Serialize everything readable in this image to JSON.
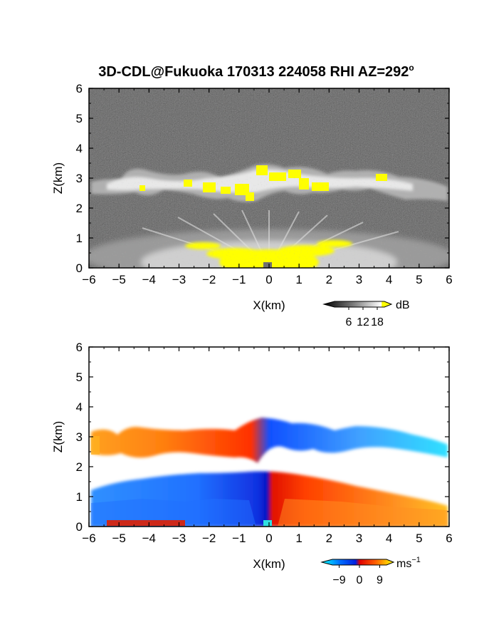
{
  "figure": {
    "title": "3D-CDL@Fukuoka 170313 224058 RHI AZ=292",
    "title_superscript": "o"
  },
  "chart_data": [
    {
      "type": "heatmap",
      "name": "reflectivity",
      "xlabel": "X(km)",
      "ylabel": "Z(km)",
      "xlim": [
        -6,
        6
      ],
      "ylim": [
        0,
        6
      ],
      "xticks": [
        -6,
        -5,
        -4,
        -3,
        -2,
        -1,
        0,
        1,
        2,
        3,
        4,
        5,
        6
      ],
      "yticks": [
        0,
        1,
        2,
        3,
        4,
        5,
        6
      ],
      "colorbar": {
        "unit": "dB",
        "ticks": [
          6,
          12,
          18
        ],
        "range": [
          0,
          21
        ],
        "colors": [
          "#000000",
          "#808080",
          "#ffffff",
          "#ffff00"
        ]
      },
      "features": {
        "cloud_layer_base_km": 2.3,
        "cloud_layer_top_km": 3.5,
        "boundary_layer_top_km": 1.1,
        "background": "noise (near-black speckle)"
      }
    },
    {
      "type": "heatmap",
      "name": "doppler_velocity",
      "xlabel": "X(km)",
      "ylabel": "Z(km)",
      "xlim": [
        -6,
        6
      ],
      "ylim": [
        0,
        6
      ],
      "xticks": [
        -6,
        -5,
        -4,
        -3,
        -2,
        -1,
        0,
        1,
        2,
        3,
        4,
        5,
        6
      ],
      "yticks": [
        0,
        1,
        2,
        3,
        4,
        5,
        6
      ],
      "colorbar": {
        "unit": "ms",
        "unit_exponent": "−1",
        "ticks": [
          "−9",
          "0",
          "9"
        ],
        "range": [
          -12,
          12
        ],
        "colors": [
          "#00ffff",
          "#0040ff",
          "#ff2000",
          "#ffff00"
        ]
      },
      "features": {
        "boundary_layer_left": "towards radar (blue)",
        "boundary_layer_right": "away from radar (red/orange)",
        "cloud_layer": "orange on left, blue to cyan on right"
      }
    }
  ]
}
